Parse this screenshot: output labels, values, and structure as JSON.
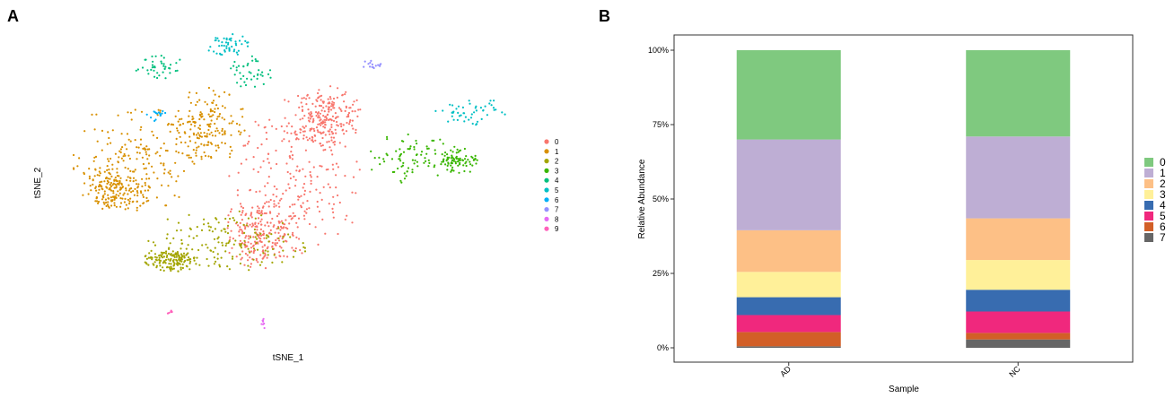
{
  "panels": {
    "a": {
      "label": "A"
    },
    "b": {
      "label": "B"
    }
  },
  "chart_data": [
    {
      "type": "scatter",
      "title": "",
      "xlabel": "tSNE_1",
      "ylabel": "tSNE_2",
      "legend": {
        "position": "right",
        "entries": [
          {
            "label": "0",
            "color": "#F8766D"
          },
          {
            "label": "1",
            "color": "#D89000"
          },
          {
            "label": "2",
            "color": "#A3A500"
          },
          {
            "label": "3",
            "color": "#39B600"
          },
          {
            "label": "4",
            "color": "#00BF7D"
          },
          {
            "label": "5",
            "color": "#00BFC4"
          },
          {
            "label": "6",
            "color": "#00B0F6"
          },
          {
            "label": "7",
            "color": "#9590FF"
          },
          {
            "label": "8",
            "color": "#E76BF3"
          },
          {
            "label": "9",
            "color": "#FF62BC"
          }
        ]
      },
      "clusters": [
        {
          "label": "0",
          "color": "#F8766D",
          "count": 650,
          "blobs": [
            [
              330,
              200,
              75,
              95
            ],
            [
              290,
              260,
              45,
              40
            ],
            [
              360,
              130,
              45,
              35
            ]
          ]
        },
        {
          "label": "1",
          "color": "#D89000",
          "count": 520,
          "blobs": [
            [
              150,
              175,
              70,
              65
            ],
            [
              230,
              140,
              45,
              45
            ],
            [
              130,
              210,
              40,
              30
            ]
          ]
        },
        {
          "label": "2",
          "color": "#A3A500",
          "count": 300,
          "blobs": [
            [
              250,
              270,
              95,
              35
            ],
            [
              190,
              290,
              30,
              15
            ]
          ]
        },
        {
          "label": "3",
          "color": "#39B600",
          "count": 160,
          "blobs": [
            [
              460,
              175,
              52,
              32
            ],
            [
              510,
              180,
              25,
              15
            ]
          ]
        },
        {
          "label": "4",
          "color": "#00BF7D",
          "count": 80,
          "blobs": [
            [
              175,
              75,
              32,
              16
            ],
            [
              275,
              80,
              30,
              18
            ]
          ]
        },
        {
          "label": "5",
          "color": "#00BFC4",
          "count": 100,
          "blobs": [
            [
              525,
              125,
              40,
              17
            ],
            [
              253,
              50,
              25,
              13
            ]
          ]
        },
        {
          "label": "6",
          "color": "#00B0F6",
          "count": 15,
          "blobs": [
            [
              173,
              128,
              12,
              8
            ]
          ]
        },
        {
          "label": "7",
          "color": "#9590FF",
          "count": 15,
          "blobs": [
            [
              415,
              72,
              12,
              5
            ]
          ]
        },
        {
          "label": "8",
          "color": "#E76BF3",
          "count": 8,
          "blobs": [
            [
              293,
              362,
              3,
              9
            ]
          ]
        },
        {
          "label": "9",
          "color": "#FF62BC",
          "count": 6,
          "blobs": [
            [
              190,
              347,
              4,
              4
            ]
          ]
        }
      ]
    },
    {
      "type": "bar",
      "stacked": true,
      "title": "",
      "xlabel": "Sample",
      "ylabel": "Relative Abundance",
      "categories": [
        "AD",
        "NC"
      ],
      "ylim": [
        0,
        1
      ],
      "yticks": [
        {
          "value": 0,
          "label": "0%"
        },
        {
          "value": 0.25,
          "label": "25%"
        },
        {
          "value": 0.5,
          "label": "50%"
        },
        {
          "value": 0.75,
          "label": "75%"
        },
        {
          "value": 1,
          "label": "100%"
        }
      ],
      "legend_position": "right",
      "series": [
        {
          "name": "7",
          "color": "#666666",
          "values": [
            0.005,
            0.028
          ]
        },
        {
          "name": "6",
          "color": "#D25F27",
          "values": [
            0.048,
            0.022
          ]
        },
        {
          "name": "5",
          "color": "#F0287D",
          "values": [
            0.057,
            0.072
          ]
        },
        {
          "name": "4",
          "color": "#386CB0",
          "values": [
            0.06,
            0.073
          ]
        },
        {
          "name": "3",
          "color": "#FFF099",
          "values": [
            0.085,
            0.1
          ]
        },
        {
          "name": "2",
          "color": "#FDC086",
          "values": [
            0.14,
            0.14
          ]
        },
        {
          "name": "1",
          "color": "#BEAED4",
          "values": [
            0.305,
            0.275
          ]
        },
        {
          "name": "0",
          "color": "#7FC97F",
          "values": [
            0.3,
            0.29
          ]
        }
      ]
    }
  ]
}
